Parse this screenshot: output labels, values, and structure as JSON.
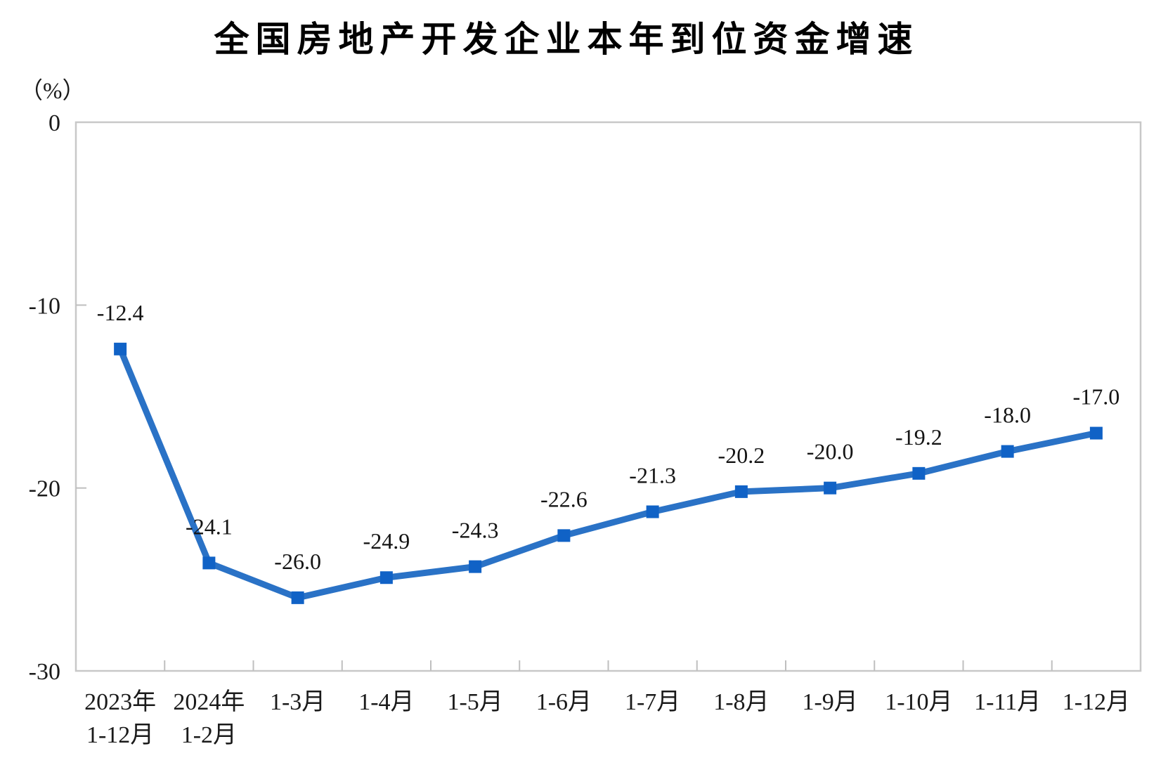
{
  "page": {
    "background_color": "#ffffff"
  },
  "chart_data": {
    "type": "line",
    "title": "全国房地产开发企业本年到位资金增速",
    "unit_label": "（%）",
    "categories": [
      "2023年\n1-12月",
      "2024年\n1-2月",
      "1-3月",
      "1-4月",
      "1-5月",
      "1-6月",
      "1-7月",
      "1-8月",
      "1-9月",
      "1-10月",
      "1-11月",
      "1-12月"
    ],
    "values": [
      -12.4,
      -24.1,
      -26.0,
      -24.9,
      -24.3,
      -22.6,
      -21.3,
      -20.2,
      -20.0,
      -19.2,
      -18.0,
      -17.0
    ],
    "data_labels": [
      "-12.4",
      "-24.1",
      "-26.0",
      "-24.9",
      "-24.3",
      "-22.6",
      "-21.3",
      "-20.2",
      "-20.0",
      "-19.2",
      "-18.0",
      "-17.0"
    ],
    "xlabel": "",
    "ylabel": "（%）",
    "y_axis": {
      "min": -30,
      "max": 0,
      "ticks": [
        0,
        -10,
        -20,
        -30
      ],
      "tick_labels": [
        "0",
        "-10",
        "-20",
        "-30"
      ]
    },
    "grid": false,
    "legend": false,
    "marker_shape": "square",
    "colors": {
      "line": "#2a72c6",
      "marker": "#1062c6",
      "axis_border": "#c8c8c8",
      "axis_tick": "#bfbfbf",
      "label_text": "#141414",
      "title_text": "#000000"
    }
  }
}
